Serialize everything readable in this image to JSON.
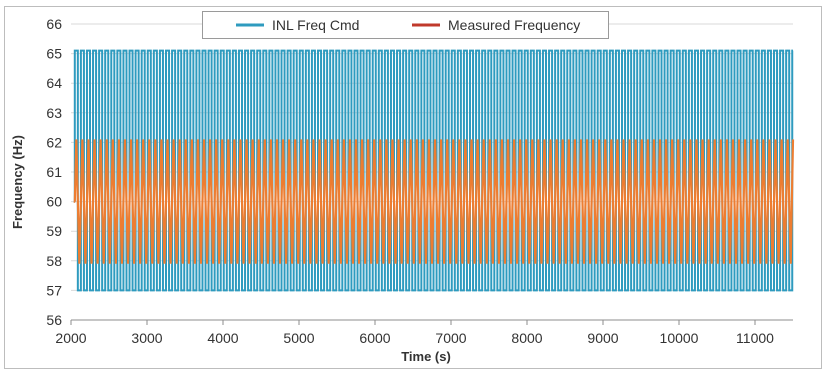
{
  "chart_data": {
    "type": "line",
    "xlabel": "Time (s)",
    "ylabel": "Frequency (Hz)",
    "xlim": [
      2000,
      11500
    ],
    "ylim": [
      56,
      66
    ],
    "xticks": [
      2000,
      3000,
      4000,
      5000,
      6000,
      7000,
      8000,
      9000,
      10000,
      11000
    ],
    "yticks": [
      56,
      57,
      58,
      59,
      60,
      61,
      62,
      63,
      64,
      65,
      66
    ],
    "grid": "horizontal",
    "legend_position": "top-center",
    "series": [
      {
        "name": "INL Freq Cmd",
        "color": "#2e9bbf",
        "waveform": "square",
        "start": 2050,
        "end": 11500,
        "initial_value": 60,
        "high": 65.1,
        "low": 57.0,
        "period_s": 80
      },
      {
        "name": "Measured Frequency",
        "color": "#ed7d31",
        "waveform": "oscillation",
        "start": 2050,
        "end": 11500,
        "initial_value": 60,
        "high": 62.1,
        "low": 57.9,
        "period_s": 80
      }
    ]
  }
}
